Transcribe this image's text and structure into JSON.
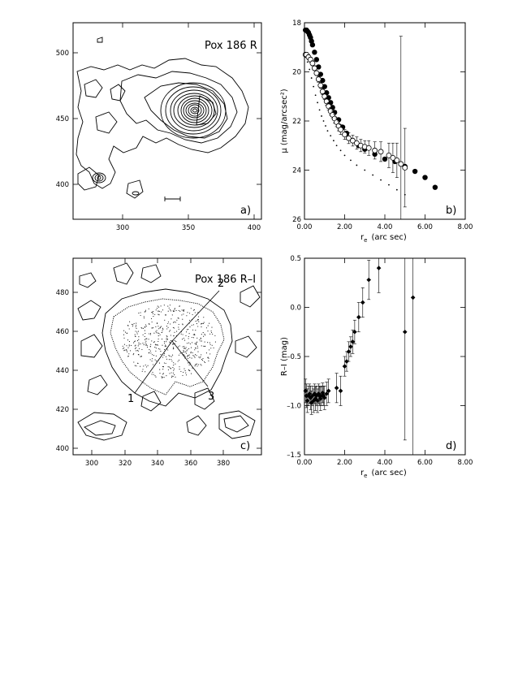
{
  "panels": {
    "a": {
      "title": "Pox  186  R",
      "letter": "a)",
      "xticks": [
        "300",
        "350",
        "400"
      ],
      "yticks": [
        "400",
        "450",
        "500"
      ]
    },
    "c": {
      "title": "Pox  186  R–I",
      "letter": "c)",
      "xticks": [
        "300",
        "320",
        "340",
        "360",
        "380"
      ],
      "yticks": [
        "400",
        "420",
        "440",
        "460",
        "480"
      ],
      "cuts": [
        "1",
        "2",
        "3"
      ]
    }
  },
  "chart_data": [
    {
      "type": "scatter",
      "panel": "b",
      "letter": "b)",
      "xlabel_main": "r",
      "xlabel_sub": "e",
      "xlabel_rest": "(arc sec)",
      "ylabel": "μ  (mag/arcsec²)",
      "xlim": [
        0,
        8
      ],
      "ylim": [
        26,
        18
      ],
      "xticks": [
        "0.00",
        "2.00",
        "4.00",
        "6.00",
        "8.00"
      ],
      "yticks": [
        "18",
        "20",
        "22",
        "24",
        "26"
      ],
      "series": [
        {
          "marker": "filled",
          "x": [
            0.05,
            0.1,
            0.15,
            0.2,
            0.25,
            0.3,
            0.35,
            0.4,
            0.5,
            0.6,
            0.7,
            0.8,
            0.9,
            1.0,
            1.1,
            1.2,
            1.3,
            1.4,
            1.5,
            1.7,
            1.9,
            2.1,
            2.4,
            2.7,
            3.0,
            3.5,
            4.0,
            4.5,
            5.0,
            5.5,
            6.0,
            6.5
          ],
          "y": [
            18.3,
            18.3,
            18.35,
            18.4,
            18.5,
            18.6,
            18.75,
            18.9,
            19.2,
            19.5,
            19.8,
            20.1,
            20.35,
            20.6,
            20.85,
            21.05,
            21.25,
            21.45,
            21.65,
            21.95,
            22.25,
            22.5,
            22.8,
            23.0,
            23.15,
            23.35,
            23.55,
            23.65,
            23.85,
            24.05,
            24.3,
            24.7
          ]
        },
        {
          "marker": "open",
          "x": [
            0.05,
            0.1,
            0.2,
            0.3,
            0.4,
            0.5,
            0.6,
            0.7,
            0.8,
            0.9,
            1.0,
            1.1,
            1.2,
            1.3,
            1.4,
            1.5,
            1.6,
            1.7,
            1.8,
            2.0,
            2.2,
            2.4,
            2.6,
            2.8,
            3.0,
            3.2,
            3.5,
            3.8,
            4.2,
            4.4,
            4.6,
            4.8,
            5.0
          ],
          "y": [
            19.3,
            19.3,
            19.4,
            19.5,
            19.65,
            19.85,
            20.05,
            20.3,
            20.55,
            20.8,
            21.0,
            21.2,
            21.4,
            21.6,
            21.75,
            21.9,
            22.05,
            22.2,
            22.35,
            22.55,
            22.7,
            22.8,
            22.9,
            23.0,
            23.05,
            23.1,
            23.2,
            23.25,
            23.4,
            23.5,
            23.6,
            23.75,
            23.9
          ],
          "err": [
            0.08,
            0.08,
            0.1,
            0.1,
            0.1,
            0.1,
            0.1,
            0.12,
            0.12,
            0.12,
            0.12,
            0.15,
            0.15,
            0.15,
            0.15,
            0.18,
            0.18,
            0.2,
            0.2,
            0.2,
            0.22,
            0.22,
            0.25,
            0.25,
            0.25,
            0.3,
            0.35,
            0.4,
            0.5,
            0.6,
            0.7,
            5.2,
            1.6
          ]
        },
        {
          "marker": "dot",
          "x": [
            0.05,
            0.15,
            0.25,
            0.35,
            0.45,
            0.55,
            0.65,
            0.75,
            0.85,
            0.95,
            1.05,
            1.15,
            1.3,
            1.45,
            1.6,
            1.8,
            2.0,
            2.3,
            2.6,
            3.0,
            3.4,
            3.8,
            4.2,
            4.6,
            5.0
          ],
          "y": [
            19.4,
            19.6,
            19.9,
            20.25,
            20.6,
            20.95,
            21.25,
            21.55,
            21.8,
            22.0,
            22.2,
            22.4,
            22.6,
            22.8,
            23.0,
            23.2,
            23.4,
            23.6,
            23.8,
            24.0,
            24.2,
            24.4,
            24.6,
            24.8,
            25.0
          ]
        }
      ]
    },
    {
      "type": "scatter",
      "panel": "d",
      "letter": "d)",
      "xlabel_main": "r",
      "xlabel_sub": "e",
      "xlabel_rest": "(arc sec)",
      "ylabel": "R–I  (mag)",
      "xlim": [
        0,
        8
      ],
      "ylim": [
        -1.5,
        0.5
      ],
      "xticks": [
        "0.00",
        "2.00",
        "4.00",
        "6.00",
        "8.00"
      ],
      "yticks": [
        "0.5",
        "0.0",
        "–0.5",
        "–1.0",
        "–1.5"
      ],
      "series": [
        {
          "marker": "diamond",
          "x": [
            0.05,
            0.1,
            0.15,
            0.2,
            0.25,
            0.3,
            0.35,
            0.4,
            0.45,
            0.5,
            0.55,
            0.6,
            0.65,
            0.7,
            0.75,
            0.8,
            0.85,
            0.9,
            0.95,
            1.0,
            1.1,
            1.2,
            1.6,
            1.8,
            2.0,
            2.1,
            2.2,
            2.3,
            2.4,
            2.5,
            2.7,
            2.9,
            3.2,
            3.7,
            5.0,
            5.4
          ],
          "y": [
            -0.85,
            -0.9,
            -0.95,
            -0.9,
            -0.88,
            -0.92,
            -0.97,
            -0.9,
            -0.95,
            -0.88,
            -0.93,
            -0.9,
            -0.95,
            -0.88,
            -0.9,
            -0.93,
            -0.9,
            -0.87,
            -0.9,
            -0.92,
            -0.88,
            -0.85,
            -0.82,
            -0.85,
            -0.6,
            -0.55,
            -0.45,
            -0.4,
            -0.35,
            -0.25,
            -0.1,
            0.05,
            0.28,
            0.4,
            -0.25,
            0.1
          ],
          "err": [
            0.12,
            0.12,
            0.12,
            0.1,
            0.1,
            0.12,
            0.12,
            0.1,
            0.12,
            0.1,
            0.12,
            0.1,
            0.12,
            0.1,
            0.1,
            0.12,
            0.1,
            0.1,
            0.1,
            0.12,
            0.12,
            0.12,
            0.15,
            0.15,
            0.1,
            0.1,
            0.1,
            0.1,
            0.12,
            0.12,
            0.15,
            0.15,
            0.2,
            0.25,
            1.1,
            1.6
          ]
        }
      ]
    }
  ]
}
